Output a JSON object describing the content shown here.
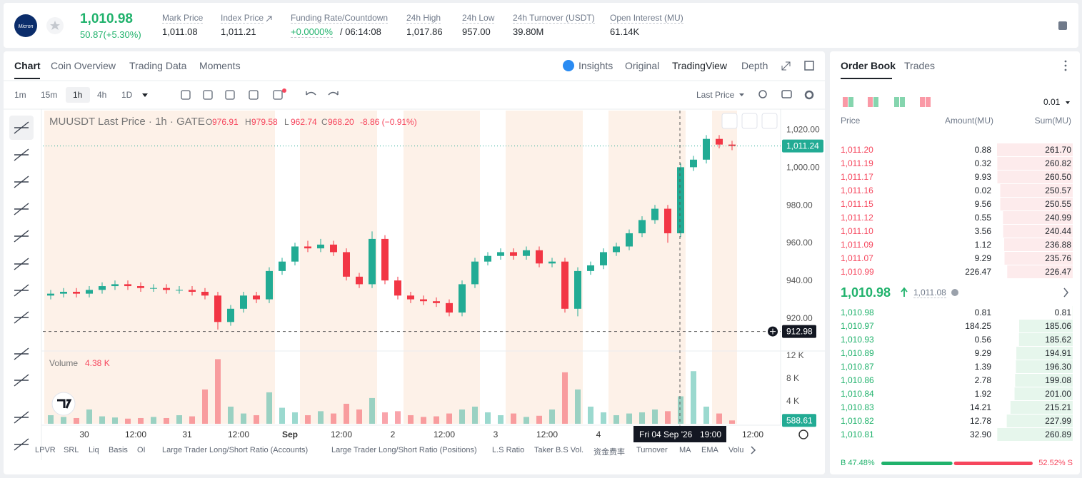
{
  "header": {
    "logo": "Micron",
    "price": "1,010.98",
    "change": "50.87(+5.30%)",
    "stats": [
      {
        "label": "Mark Price",
        "value": "1,011.08"
      },
      {
        "label": "Index Price",
        "value": "1,011.21"
      },
      {
        "label": "Funding Rate/Countdown",
        "value": "+0.0000%",
        "value2": "/ 06:14:08"
      },
      {
        "label": "24h High",
        "value": "1,017.86"
      },
      {
        "label": "24h Low",
        "value": "957.00"
      },
      {
        "label": "24h Turnover (USDT)",
        "value": "39.80M"
      },
      {
        "label": "Open Interest (MU)",
        "value": "61.14K"
      }
    ]
  },
  "tabs": [
    "Chart",
    "Coin Overview",
    "Trading Data",
    "Moments"
  ],
  "view_tabs": [
    "Insights",
    "Original",
    "TradingView",
    "Depth"
  ],
  "intervals": [
    "1m",
    "15m",
    "1h",
    "4h",
    "1D"
  ],
  "price_source": "Last Price",
  "legend": {
    "symbol": "MUUSDT Last Price · 1h · GATE",
    "ohlc": [
      [
        "O",
        "976.91"
      ],
      [
        "H",
        "979.58"
      ],
      [
        "L",
        "962.74"
      ],
      [
        "C",
        "968.20"
      ]
    ],
    "change": "-8.86 (−0.91%)",
    "volume_title": "Volume",
    "volume_value": "4.38 K"
  },
  "chart_data": {
    "type": "candlestick",
    "up_color": "#22ab94",
    "down_color": "#f23645",
    "open": [
      932,
      933,
      934,
      933,
      935,
      937,
      938,
      937,
      936,
      936,
      935,
      935,
      934,
      932,
      918,
      925,
      932,
      930,
      945,
      950,
      958,
      957,
      959,
      955,
      942,
      938,
      962,
      940,
      932,
      930,
      929,
      928,
      923,
      938,
      950,
      953,
      955,
      953,
      956,
      949,
      950,
      925,
      945,
      948,
      955,
      958,
      965,
      972,
      978,
      965,
      1000,
      1004,
      1015,
      1012
    ],
    "high": [
      935,
      936,
      936,
      937,
      939,
      940,
      940,
      939,
      938,
      938,
      937,
      937,
      936,
      934,
      927,
      934,
      934,
      947,
      952,
      960,
      961,
      962,
      961,
      957,
      944,
      966,
      964,
      942,
      934,
      932,
      931,
      930,
      940,
      952,
      955,
      957,
      957,
      958,
      958,
      952,
      952,
      947,
      950,
      957,
      960,
      967,
      974,
      980,
      980,
      1002,
      1006,
      1017,
      1017,
      1014
    ],
    "low": [
      930,
      931,
      931,
      931,
      933,
      935,
      935,
      934,
      934,
      933,
      933,
      932,
      930,
      914,
      916,
      923,
      928,
      928,
      943,
      948,
      955,
      955,
      953,
      940,
      936,
      936,
      938,
      930,
      928,
      927,
      926,
      921,
      921,
      936,
      948,
      951,
      951,
      951,
      947,
      947,
      923,
      921,
      943,
      946,
      953,
      956,
      963,
      970,
      960,
      963,
      998,
      1002,
      1010,
      1009
    ],
    "close": [
      933,
      934,
      933,
      935,
      937,
      938,
      937,
      936,
      936,
      935,
      935,
      934,
      932,
      918,
      925,
      932,
      930,
      945,
      950,
      958,
      957,
      959,
      955,
      942,
      938,
      962,
      940,
      932,
      930,
      929,
      928,
      923,
      938,
      950,
      953,
      955,
      953,
      956,
      949,
      950,
      925,
      945,
      948,
      955,
      958,
      965,
      972,
      978,
      965,
      1000,
      1004,
      1015,
      1012,
      1011.24
    ],
    "volume": [
      1500,
      1200,
      1000,
      2500,
      1300,
      1100,
      900,
      1000,
      1200,
      1000,
      1500,
      1300,
      6000,
      11300,
      3000,
      1800,
      1500,
      5500,
      2800,
      2000,
      1500,
      2200,
      1800,
      3500,
      2500,
      4500,
      2000,
      2200,
      1500,
      1200,
      1300,
      1800,
      2500,
      3000,
      2000,
      1500,
      1800,
      1200,
      1400,
      2500,
      9000,
      6000,
      3000,
      2000,
      1500,
      1800,
      2000,
      2500,
      2200,
      4800,
      9200,
      3000,
      1800,
      588.61
    ],
    "ylim": [
      903,
      1030
    ],
    "yticks": [
      {
        "value": 920,
        "label": "920.00"
      },
      {
        "value": 940,
        "label": "940.00"
      },
      {
        "value": 960,
        "label": "960.00"
      },
      {
        "value": 980,
        "label": "980.00"
      },
      {
        "value": 1000,
        "label": "1,000.00"
      },
      {
        "value": 1020,
        "label": "1,020.00"
      }
    ],
    "volume_ylim": [
      0,
      12600
    ],
    "volume_yticks": [
      {
        "value": 4000,
        "label": "4 K"
      },
      {
        "value": 8000,
        "label": "8 K"
      },
      {
        "value": 12000,
        "label": "12 K"
      }
    ],
    "time_labels": [
      "30",
      "12:00",
      "31",
      "12:00",
      "Sep",
      "12:00",
      "2",
      "12:00",
      "3",
      "12:00",
      "4",
      null,
      null,
      "12:00"
    ],
    "last_price": {
      "value": 1011.24,
      "label": "1,011.24"
    },
    "crosshair": {
      "price": {
        "value": 912.98,
        "label": "912.98"
      },
      "date": "Fri 04 Sep '26",
      "time": "19:00"
    }
  },
  "indicators": [
    "LPVR",
    "SRL",
    "Liq",
    "Basis",
    "OI",
    "Large Trader Long/Short Ratio (Accounts)",
    "Large Trader Long/Short Ratio (Positions)",
    "L.S Ratio",
    "Taker B.S Vol.",
    "资金费率",
    "Turnover",
    "MA",
    "EMA",
    "Volu"
  ],
  "order_book": {
    "tabs": [
      "Order Book",
      "Trades"
    ],
    "step": "0.01",
    "columns": [
      "Price",
      "Amount(MU)",
      "Sum(MU)"
    ],
    "asks": [
      [
        "1,011.20",
        "0.88",
        "261.70"
      ],
      [
        "1,011.19",
        "0.32",
        "260.82"
      ],
      [
        "1,011.17",
        "9.93",
        "260.50"
      ],
      [
        "1,011.16",
        "0.02",
        "250.57"
      ],
      [
        "1,011.15",
        "9.56",
        "250.55"
      ],
      [
        "1,011.12",
        "0.55",
        "240.99"
      ],
      [
        "1,011.10",
        "3.56",
        "240.44"
      ],
      [
        "1,011.09",
        "1.12",
        "236.88"
      ],
      [
        "1,011.07",
        "9.29",
        "235.76"
      ],
      [
        "1,010.99",
        "226.47",
        "226.47"
      ]
    ],
    "mid_price": "1,010.98",
    "mark_price": "1,011.08",
    "bids": [
      [
        "1,010.98",
        "0.81",
        "0.81"
      ],
      [
        "1,010.97",
        "184.25",
        "185.06"
      ],
      [
        "1,010.93",
        "0.56",
        "185.62"
      ],
      [
        "1,010.89",
        "9.29",
        "194.91"
      ],
      [
        "1,010.87",
        "1.39",
        "196.30"
      ],
      [
        "1,010.86",
        "2.78",
        "199.08"
      ],
      [
        "1,010.84",
        "1.92",
        "201.00"
      ],
      [
        "1,010.83",
        "14.21",
        "215.21"
      ],
      [
        "1,010.82",
        "12.78",
        "227.99"
      ],
      [
        "1,010.81",
        "32.90",
        "260.89"
      ]
    ],
    "buy": "B 47.48%",
    "sell": "52.52% S"
  }
}
